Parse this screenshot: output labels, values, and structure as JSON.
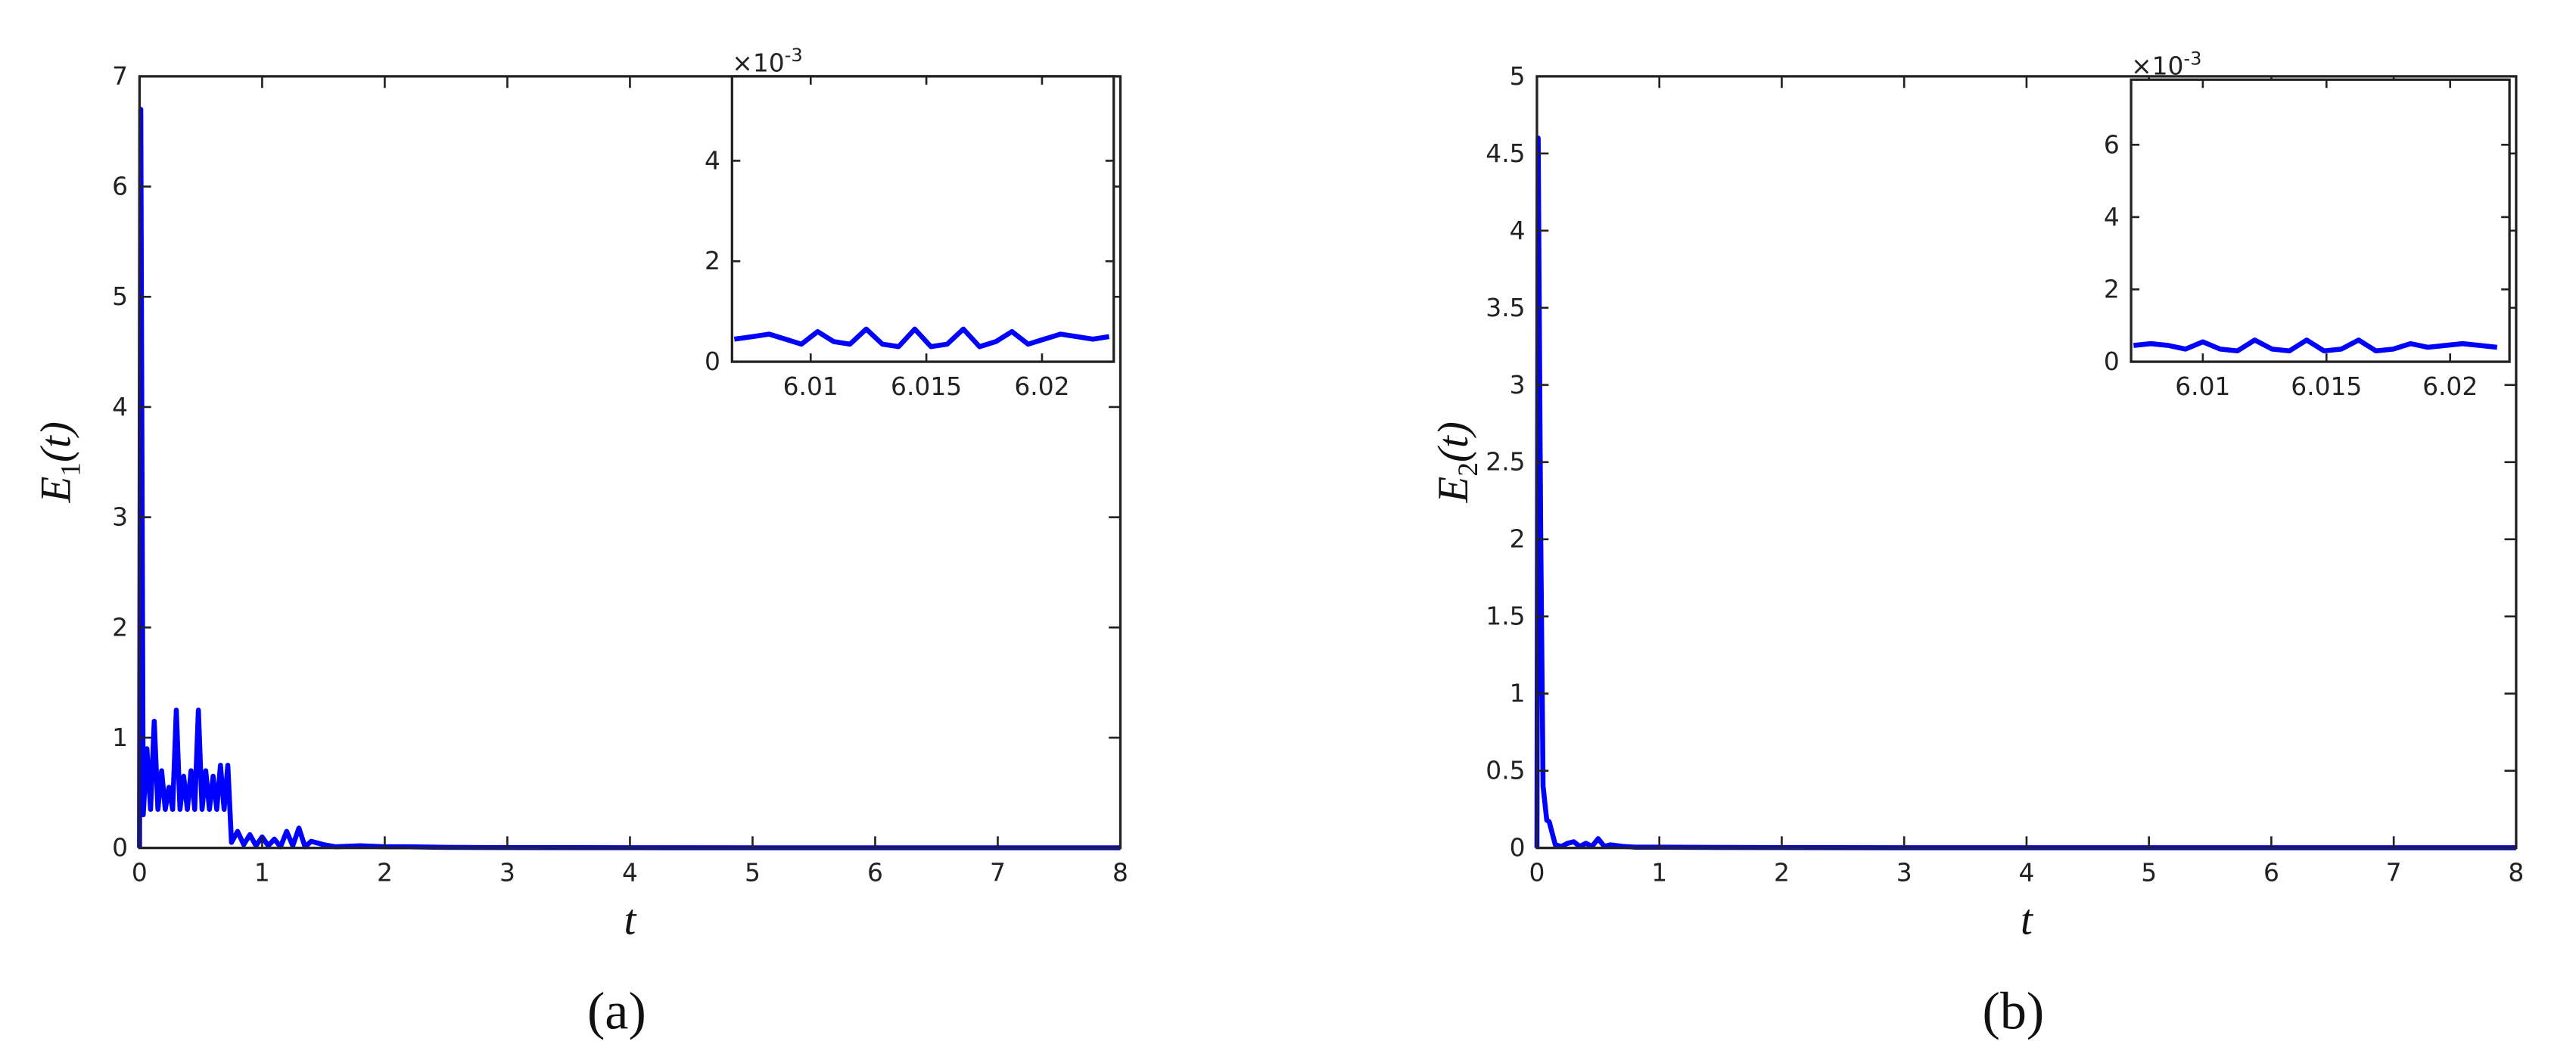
{
  "chart_data": [
    {
      "type": "line",
      "caption": "(a)",
      "xlabel": "t",
      "ylabel": {
        "main": "E",
        "sub": "1",
        "rest": "(t)"
      },
      "xlim": [
        0,
        8
      ],
      "ylim": [
        0,
        7
      ],
      "xticks": [
        0,
        1,
        2,
        3,
        4,
        5,
        6,
        7,
        8
      ],
      "yticks": [
        0,
        1,
        2,
        3,
        4,
        5,
        6,
        7
      ],
      "color": "#0000ff",
      "x": [
        0,
        0.01,
        0.03,
        0.06,
        0.09,
        0.12,
        0.15,
        0.18,
        0.21,
        0.24,
        0.27,
        0.3,
        0.33,
        0.36,
        0.39,
        0.42,
        0.45,
        0.48,
        0.51,
        0.54,
        0.57,
        0.6,
        0.63,
        0.66,
        0.69,
        0.72,
        0.75,
        0.8,
        0.85,
        0.9,
        0.95,
        1.0,
        1.05,
        1.1,
        1.15,
        1.2,
        1.25,
        1.3,
        1.35,
        1.4,
        1.5,
        1.6,
        1.8,
        2.0,
        2.2,
        2.5,
        3,
        4,
        5,
        6,
        7,
        8
      ],
      "values": [
        0,
        6.7,
        0.3,
        0.9,
        0.35,
        1.15,
        0.35,
        0.7,
        0.35,
        0.55,
        0.35,
        1.25,
        0.35,
        0.65,
        0.35,
        0.7,
        0.35,
        1.25,
        0.35,
        0.7,
        0.35,
        0.65,
        0.35,
        0.75,
        0.35,
        0.75,
        0.05,
        0.15,
        0.03,
        0.12,
        0.02,
        0.1,
        0.02,
        0.08,
        0.01,
        0.15,
        0.02,
        0.18,
        0.01,
        0.06,
        0.03,
        0.01,
        0.02,
        0.01,
        0.01,
        0.005,
        0.003,
        0.002,
        0.001,
        0.001,
        0.001,
        0.001
      ]
    },
    {
      "type": "line",
      "y_multiplier": {
        "base": "×10",
        "exponent": "-3"
      },
      "xlim": [
        6.0066,
        6.0231
      ],
      "ylim": [
        0,
        5.68
      ],
      "xticks": [
        6.01,
        6.015,
        6.02
      ],
      "yticks": [
        0,
        2,
        4
      ],
      "color": "#0000ff",
      "x": [
        6.0067,
        6.0075,
        6.0082,
        6.0089,
        6.0096,
        6.0103,
        6.011,
        6.0117,
        6.0124,
        6.0131,
        6.0138,
        6.0145,
        6.0152,
        6.0159,
        6.0166,
        6.0173,
        6.018,
        6.0187,
        6.0194,
        6.0201,
        6.0208,
        6.0215,
        6.0222,
        6.0229
      ],
      "values": [
        0.45,
        0.5,
        0.55,
        0.45,
        0.35,
        0.6,
        0.4,
        0.35,
        0.65,
        0.35,
        0.3,
        0.65,
        0.3,
        0.35,
        0.65,
        0.3,
        0.4,
        0.6,
        0.35,
        0.45,
        0.55,
        0.5,
        0.45,
        0.5
      ]
    },
    {
      "type": "line",
      "caption": "(b)",
      "xlabel": "t",
      "ylabel": {
        "main": "E",
        "sub": "2",
        "rest": "(t)"
      },
      "xlim": [
        0,
        8
      ],
      "ylim": [
        0,
        5
      ],
      "xticks": [
        0,
        1,
        2,
        3,
        4,
        5,
        6,
        7,
        8
      ],
      "yticks": [
        0,
        0.5,
        1,
        1.5,
        2,
        2.5,
        3,
        3.5,
        4,
        4.5,
        5
      ],
      "color": "#0000ff",
      "x": [
        0,
        0.01,
        0.03,
        0.05,
        0.08,
        0.1,
        0.15,
        0.2,
        0.25,
        0.3,
        0.35,
        0.4,
        0.45,
        0.5,
        0.55,
        0.6,
        0.7,
        0.8,
        1.0,
        1.5,
        2,
        3,
        4,
        5,
        6,
        7,
        8
      ],
      "values": [
        0,
        4.6,
        2.1,
        0.4,
        0.18,
        0.17,
        0.02,
        0.01,
        0.03,
        0.04,
        0.01,
        0.03,
        0.01,
        0.06,
        0.01,
        0.02,
        0.01,
        0.005,
        0.005,
        0.003,
        0.002,
        0.001,
        0.001,
        0.001,
        0.001,
        0.001,
        0.001
      ]
    },
    {
      "type": "line",
      "y_multiplier": {
        "base": "×10",
        "exponent": "-3"
      },
      "xlim": [
        6.0071,
        6.0224
      ],
      "ylim": [
        0,
        7.8
      ],
      "xticks": [
        6.01,
        6.015,
        6.02
      ],
      "yticks": [
        0,
        2,
        4,
        6
      ],
      "color": "#0000ff",
      "x": [
        6.0072,
        6.0079,
        6.0086,
        6.0093,
        6.01,
        6.0107,
        6.0114,
        6.0121,
        6.0128,
        6.0135,
        6.0142,
        6.0149,
        6.0156,
        6.0163,
        6.017,
        6.0177,
        6.0184,
        6.0191,
        6.0198,
        6.0205,
        6.0212,
        6.0219
      ],
      "values": [
        0.45,
        0.5,
        0.45,
        0.35,
        0.55,
        0.35,
        0.3,
        0.6,
        0.35,
        0.3,
        0.6,
        0.3,
        0.35,
        0.6,
        0.3,
        0.35,
        0.5,
        0.4,
        0.45,
        0.5,
        0.45,
        0.4
      ]
    }
  ]
}
